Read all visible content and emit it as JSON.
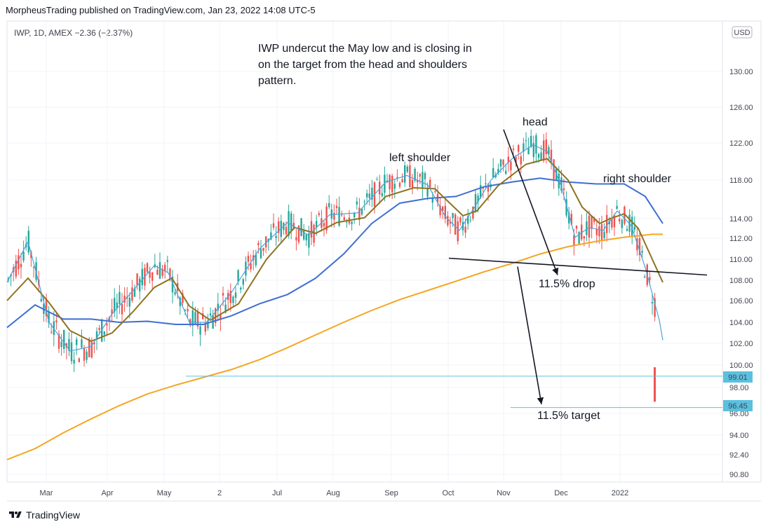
{
  "header": {
    "publisher_line": "MorpheusTrading published on TradingView.com, Jan 23, 2022 14:08 UTC-5"
  },
  "symbol_line": "IWP, 1D, AMEX  −2.36 (−2.37%)",
  "footer": {
    "brand": "TradingView"
  },
  "colors": {
    "up": "#26a69a",
    "down": "#ef5350",
    "ema_fast": "#4aa3df",
    "sma_mid": "#8d7320",
    "sma_blue": "#3f6fd1",
    "sma_orange": "#f5a623",
    "level_line": "#5bc0de"
  },
  "chart_data": {
    "type": "line",
    "title": "",
    "currency": "USD",
    "y_ticks": [
      "130.00",
      "126.00",
      "122.00",
      "118.00",
      "114.00",
      "112.00",
      "110.00",
      "108.00",
      "106.00",
      "104.00",
      "102.00",
      "100.00",
      "98.00",
      "96.00",
      "94.00",
      "92.40",
      "90.80"
    ],
    "x_ticks": [
      "Mar",
      "Apr",
      "May",
      "2",
      "Jul",
      "Aug",
      "Sep",
      "Oct",
      "Nov",
      "Dec",
      "2022"
    ],
    "price_labels": [
      {
        "value": "99.01",
        "price": 99.01
      },
      {
        "value": "96.45",
        "price": 96.45
      }
    ],
    "annotations": {
      "note": [
        "IWP undercut the May low and is closing in",
        "on the target from the head and shoulders",
        "pattern."
      ],
      "head": "head",
      "left_shoulder": "left shoulder",
      "right_shoulder": "right shoulder",
      "drop": "11.5% drop",
      "target": "11.5% target"
    },
    "series": [
      {
        "key": "sma_orange",
        "points": [
          [
            0,
            92
          ],
          [
            40,
            92.9
          ],
          [
            80,
            94.2
          ],
          [
            120,
            95.5
          ],
          [
            160,
            96.6
          ],
          [
            200,
            97.5
          ],
          [
            240,
            98.2
          ],
          [
            280,
            98.9
          ],
          [
            320,
            99.6
          ],
          [
            360,
            100.5
          ],
          [
            400,
            101.6
          ],
          [
            440,
            102.8
          ],
          [
            480,
            104
          ],
          [
            520,
            105.1
          ],
          [
            560,
            106.1
          ],
          [
            600,
            107
          ],
          [
            640,
            107.9
          ],
          [
            680,
            108.8
          ],
          [
            720,
            109.6
          ],
          [
            760,
            110.5
          ],
          [
            800,
            111.2
          ],
          [
            840,
            111.7
          ],
          [
            880,
            112.1
          ],
          [
            920,
            112.4
          ],
          [
            935,
            112.4
          ]
        ]
      },
      {
        "key": "sma_blue",
        "points": [
          [
            0,
            103.5
          ],
          [
            40,
            105.6
          ],
          [
            80,
            104.3
          ],
          [
            120,
            104.3
          ],
          [
            160,
            104
          ],
          [
            200,
            104.1
          ],
          [
            240,
            103.8
          ],
          [
            280,
            103.8
          ],
          [
            320,
            104.6
          ],
          [
            360,
            105.7
          ],
          [
            400,
            106.6
          ],
          [
            440,
            108.2
          ],
          [
            480,
            110.5
          ],
          [
            520,
            113.5
          ],
          [
            560,
            115.6
          ],
          [
            600,
            116.1
          ],
          [
            640,
            116.3
          ],
          [
            680,
            117.3
          ],
          [
            720,
            117.8
          ],
          [
            760,
            118.2
          ],
          [
            800,
            117.8
          ],
          [
            840,
            117.6
          ],
          [
            880,
            117.6
          ],
          [
            910,
            116.3
          ],
          [
            935,
            113.5
          ]
        ]
      },
      {
        "key": "sma_mid",
        "points": [
          [
            0,
            106
          ],
          [
            30,
            108.2
          ],
          [
            60,
            105.8
          ],
          [
            90,
            103.2
          ],
          [
            120,
            102.2
          ],
          [
            150,
            103
          ],
          [
            180,
            105
          ],
          [
            210,
            107.3
          ],
          [
            235,
            108.2
          ],
          [
            260,
            105.5
          ],
          [
            290,
            104.2
          ],
          [
            330,
            105.7
          ],
          [
            370,
            110
          ],
          [
            410,
            113.1
          ],
          [
            440,
            112.5
          ],
          [
            470,
            113.6
          ],
          [
            510,
            114.1
          ],
          [
            540,
            116.3
          ],
          [
            580,
            117.2
          ],
          [
            610,
            117.1
          ],
          [
            630,
            115.7
          ],
          [
            650,
            114.3
          ],
          [
            670,
            114.8
          ],
          [
            700,
            117.4
          ],
          [
            740,
            119.7
          ],
          [
            770,
            120.3
          ],
          [
            800,
            118
          ],
          [
            820,
            115.2
          ],
          [
            845,
            113.5
          ],
          [
            860,
            114
          ],
          [
            880,
            114.5
          ],
          [
            900,
            113
          ],
          [
            920,
            110
          ],
          [
            935,
            107.8
          ]
        ]
      },
      {
        "key": "ema_fast",
        "points": [
          [
            0,
            107.8
          ],
          [
            30,
            111.7
          ],
          [
            60,
            104
          ],
          [
            90,
            101.3
          ],
          [
            120,
            101.7
          ],
          [
            150,
            104.8
          ],
          [
            180,
            107
          ],
          [
            210,
            109.4
          ],
          [
            230,
            108.7
          ],
          [
            260,
            104
          ],
          [
            285,
            104
          ],
          [
            320,
            106.8
          ],
          [
            360,
            111
          ],
          [
            400,
            113.6
          ],
          [
            430,
            112.3
          ],
          [
            460,
            114.4
          ],
          [
            500,
            114.6
          ],
          [
            540,
            117.8
          ],
          [
            570,
            118.5
          ],
          [
            600,
            117.5
          ],
          [
            625,
            114.2
          ],
          [
            645,
            112.8
          ],
          [
            665,
            115
          ],
          [
            690,
            118
          ],
          [
            720,
            120.3
          ],
          [
            750,
            121.8
          ],
          [
            770,
            121.1
          ],
          [
            790,
            117.4
          ],
          [
            810,
            112.1
          ],
          [
            830,
            113.1
          ],
          [
            850,
            112.8
          ],
          [
            870,
            114.8
          ],
          [
            890,
            113.3
          ],
          [
            910,
            109.2
          ],
          [
            930,
            104.2
          ],
          [
            935,
            102.3
          ]
        ]
      }
    ],
    "drawings": {
      "neckline": [
        [
          640,
          110.1
        ],
        [
          1008,
          108.5
        ]
      ],
      "support_line": [
        [
          265,
          99.01
        ],
        [
          1030,
          99.01
        ]
      ],
      "target_line": [
        [
          728,
          96.45
        ],
        [
          1030,
          96.45
        ]
      ],
      "arrow_drop": [
        [
          718,
          123.5
        ],
        [
          795,
          108.5
        ]
      ],
      "arrow_target": [
        [
          738,
          109.3
        ],
        [
          772,
          96.7
        ]
      ]
    }
  }
}
